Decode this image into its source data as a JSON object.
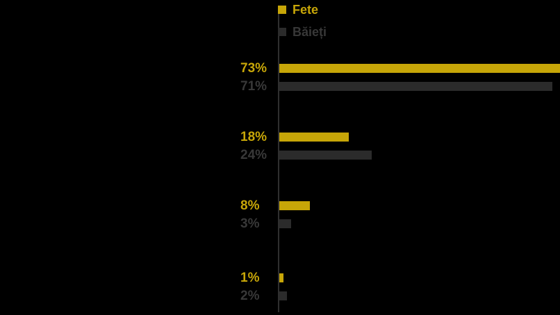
{
  "chart_data": {
    "type": "bar",
    "orientation": "horizontal",
    "title": "",
    "background": "#000000",
    "axis_color": "#2F2F2F",
    "value_suffix": "%",
    "xlim": [
      0,
      73
    ],
    "legend_position": "top",
    "grid": false,
    "series": [
      {
        "name": "Fete",
        "color": "#C7A608",
        "text_color": "#C7A608",
        "values": [
          73,
          18,
          8,
          1
        ]
      },
      {
        "name": "Băieți",
        "color": "#2B2B2B",
        "text_color": "#383838",
        "values": [
          71,
          24,
          3,
          2
        ]
      }
    ],
    "value_labels": {
      "fete": [
        "73%",
        "18%",
        "8%",
        "1%"
      ],
      "baieti": [
        "71%",
        "24%",
        "3%",
        "2%"
      ]
    }
  }
}
